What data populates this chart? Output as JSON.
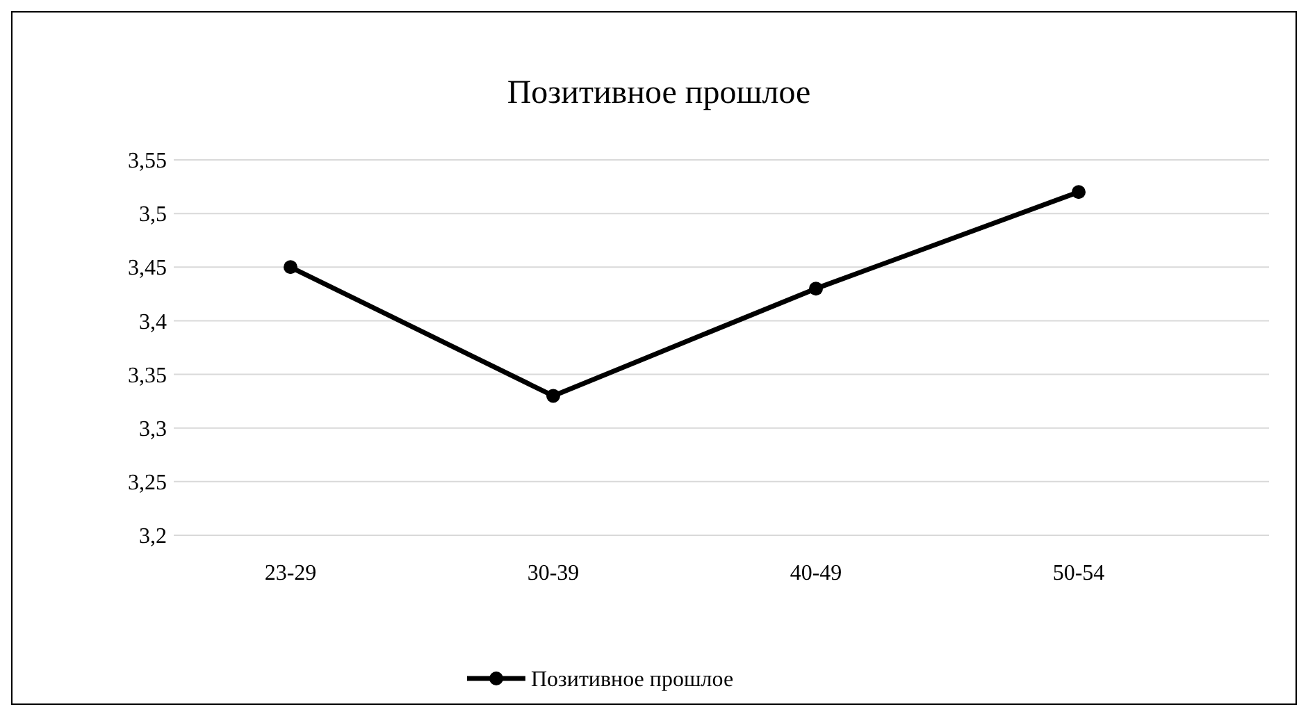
{
  "chart_data": {
    "type": "line",
    "title": "Позитивное прошлое",
    "categories": [
      "23-29",
      "30-39",
      "40-49",
      "50-54"
    ],
    "series": [
      {
        "name": "Позитивное прошлое",
        "color": "#000000",
        "values": [
          3.45,
          3.33,
          3.43,
          3.52
        ]
      }
    ],
    "ylim": [
      3.2,
      3.55
    ],
    "yticks": [
      {
        "value": 3.2,
        "label": "3,2"
      },
      {
        "value": 3.25,
        "label": "3,25"
      },
      {
        "value": 3.3,
        "label": "3,3"
      },
      {
        "value": 3.35,
        "label": "3,35"
      },
      {
        "value": 3.4,
        "label": "3,4"
      },
      {
        "value": 3.45,
        "label": "3,45"
      },
      {
        "value": 3.5,
        "label": "3,5"
      },
      {
        "value": 3.55,
        "label": "3,55"
      }
    ],
    "grid": "y",
    "legend": "bottom",
    "marker": "circle",
    "line_style": "solid"
  }
}
